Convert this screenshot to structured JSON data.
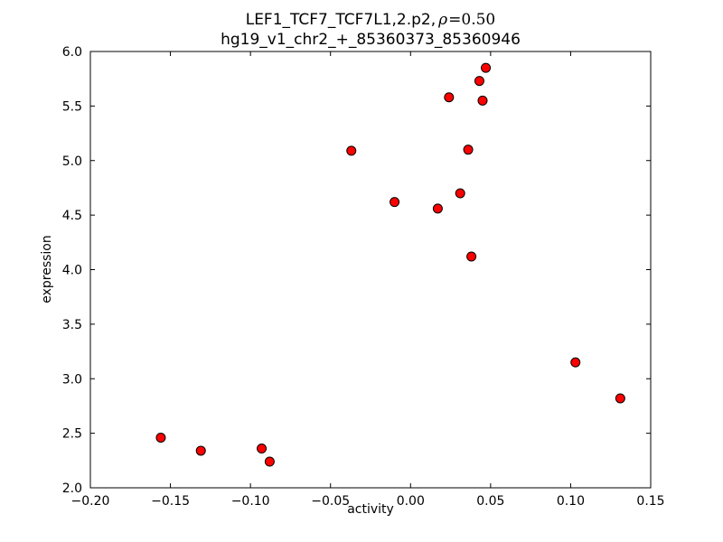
{
  "title": {
    "line1_prefix": "LEF1_TCF7_TCF7L1,2.p2,",
    "line1_rho": "ρ",
    "line1_eq": "=0.50",
    "line2": "hg19_v1_chr2_+_85360373_85360946"
  },
  "chart_data": {
    "type": "scatter",
    "title": "LEF1_TCF7_TCF7L1,2.p2, ρ=0.50\nhg19_v1_chr2_+_85360373_85360946",
    "xlabel": "activity",
    "ylabel": "expression",
    "xlim": [
      -0.2,
      0.15
    ],
    "ylim": [
      2.0,
      6.0
    ],
    "x_tick_values": [
      -0.2,
      -0.15,
      -0.1,
      -0.05,
      0.0,
      0.05,
      0.1,
      0.15
    ],
    "x_tick_labels": [
      "−0.20",
      "−0.15",
      "−0.10",
      "−0.05",
      "0.00",
      "0.05",
      "0.10",
      "0.15"
    ],
    "y_tick_values": [
      2.0,
      2.5,
      3.0,
      3.5,
      4.0,
      4.5,
      5.0,
      5.5,
      6.0
    ],
    "y_tick_labels": [
      "2.0",
      "2.5",
      "3.0",
      "3.5",
      "4.0",
      "4.5",
      "5.0",
      "5.5",
      "6.0"
    ],
    "grid": false,
    "legend": "none",
    "marker": "circle",
    "marker_color": "#ff0000",
    "marker_edge_color": "#000000",
    "points": [
      [
        -0.156,
        2.46
      ],
      [
        -0.131,
        2.34
      ],
      [
        -0.093,
        2.36
      ],
      [
        -0.088,
        2.24
      ],
      [
        -0.037,
        5.09
      ],
      [
        -0.01,
        4.62
      ],
      [
        0.017,
        4.56
      ],
      [
        0.024,
        5.58
      ],
      [
        0.031,
        4.7
      ],
      [
        0.036,
        5.1
      ],
      [
        0.038,
        4.12
      ],
      [
        0.043,
        5.73
      ],
      [
        0.045,
        5.55
      ],
      [
        0.047,
        5.85
      ],
      [
        0.103,
        3.15
      ],
      [
        0.131,
        2.82
      ]
    ]
  }
}
